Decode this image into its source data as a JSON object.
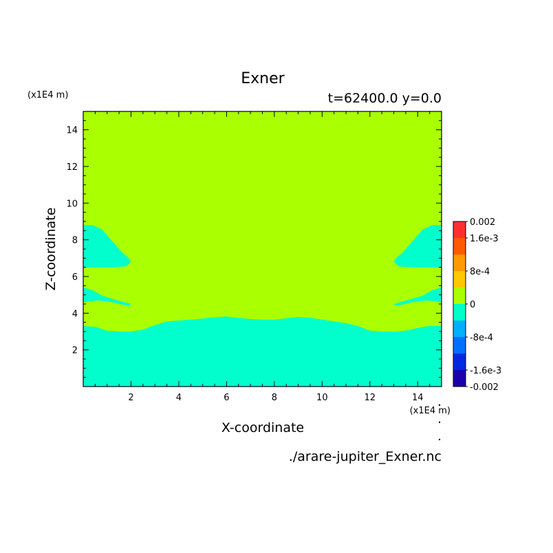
{
  "chart_data": {
    "type": "heatmap",
    "title": "Exner",
    "subtitle": "t=62400.0 y=0.0",
    "xlabel": "X-coordinate",
    "ylabel": "Z-coordinate",
    "x_unit": "(x1E4 m)",
    "y_unit": "(x1E4 m)",
    "source_file": "./arare-jupiter_Exner.nc",
    "xlim": [
      0,
      15
    ],
    "ylim": [
      0,
      15
    ],
    "x_ticks": [
      2,
      4,
      6,
      8,
      10,
      12,
      14
    ],
    "y_ticks": [
      2,
      4,
      6,
      8,
      10,
      12,
      14
    ],
    "background_level": "0 to 4e-4",
    "colorbar": {
      "levels": [
        -0.002,
        -0.0016,
        -0.0012,
        -0.0008,
        -0.0004,
        0,
        0.0004,
        0.0008,
        0.0012,
        0.0016,
        0.002
      ],
      "colors": [
        "#1a00a8",
        "#0028e0",
        "#0070ff",
        "#00b0ff",
        "#00ffcc",
        "#aaff00",
        "#ffc800",
        "#ff9900",
        "#ff5a00",
        "#ff3030"
      ],
      "tick_values": [
        -0.002,
        -0.0016,
        -0.0008,
        0,
        0.0008,
        0.0016,
        0.002
      ],
      "tick_labels": [
        "-0.002",
        "-1.6e-3",
        "-8e-4",
        "0",
        "8e-4",
        "1.6e-3",
        "0.002"
      ]
    },
    "regions": [
      {
        "name": "lower-layer",
        "level": "-4e-4 to 0",
        "boundary": [
          [
            0,
            3.3
          ],
          [
            0.5,
            3.25
          ],
          [
            1,
            3.05
          ],
          [
            1.5,
            3.0
          ],
          [
            2,
            3.0
          ],
          [
            2.5,
            3.1
          ],
          [
            3,
            3.35
          ],
          [
            3.5,
            3.55
          ],
          [
            4,
            3.6
          ],
          [
            4.5,
            3.65
          ],
          [
            5,
            3.7
          ],
          [
            5.5,
            3.78
          ],
          [
            6,
            3.82
          ],
          [
            6.5,
            3.74
          ],
          [
            7,
            3.68
          ],
          [
            7.5,
            3.65
          ],
          [
            8,
            3.65
          ],
          [
            8.5,
            3.72
          ],
          [
            9,
            3.8
          ],
          [
            9.5,
            3.75
          ],
          [
            10,
            3.65
          ],
          [
            10.5,
            3.55
          ],
          [
            11,
            3.45
          ],
          [
            11.5,
            3.3
          ],
          [
            12,
            3.05
          ],
          [
            12.5,
            3.0
          ],
          [
            13,
            3.0
          ],
          [
            13.5,
            3.05
          ],
          [
            14,
            3.2
          ],
          [
            14.5,
            3.3
          ],
          [
            15,
            3.3
          ]
        ]
      },
      {
        "name": "left-upper-lobe",
        "level": "-4e-4 to 0",
        "boundary": [
          [
            0,
            6.5
          ],
          [
            0,
            8.8
          ],
          [
            0.4,
            8.8
          ],
          [
            0.8,
            8.55
          ],
          [
            1.2,
            7.95
          ],
          [
            1.6,
            7.35
          ],
          [
            1.9,
            7.0
          ],
          [
            2,
            6.8
          ],
          [
            1.8,
            6.55
          ],
          [
            1.2,
            6.5
          ]
        ]
      },
      {
        "name": "left-lower-lobe",
        "level": "-4e-4 to 0",
        "boundary": [
          [
            0,
            4.6
          ],
          [
            0,
            5.4
          ],
          [
            0.4,
            5.25
          ],
          [
            0.8,
            4.95
          ],
          [
            1.3,
            4.75
          ],
          [
            2,
            4.5
          ],
          [
            1.9,
            4.4
          ],
          [
            1.2,
            4.6
          ],
          [
            0.6,
            4.7
          ]
        ]
      },
      {
        "name": "right-upper-lobe",
        "level": "-4e-4 to 0",
        "boundary": [
          [
            15,
            6.5
          ],
          [
            15,
            8.8
          ],
          [
            14.6,
            8.8
          ],
          [
            14.2,
            8.55
          ],
          [
            13.8,
            7.95
          ],
          [
            13.4,
            7.35
          ],
          [
            13.1,
            7.0
          ],
          [
            13,
            6.8
          ],
          [
            13.2,
            6.55
          ],
          [
            13.8,
            6.5
          ]
        ]
      },
      {
        "name": "right-lower-lobe",
        "level": "-4e-4 to 0",
        "boundary": [
          [
            15,
            4.6
          ],
          [
            15,
            5.4
          ],
          [
            14.6,
            5.25
          ],
          [
            14.2,
            4.95
          ],
          [
            13.7,
            4.75
          ],
          [
            13,
            4.5
          ],
          [
            13.1,
            4.4
          ],
          [
            13.8,
            4.6
          ],
          [
            14.4,
            4.7
          ]
        ]
      }
    ]
  }
}
